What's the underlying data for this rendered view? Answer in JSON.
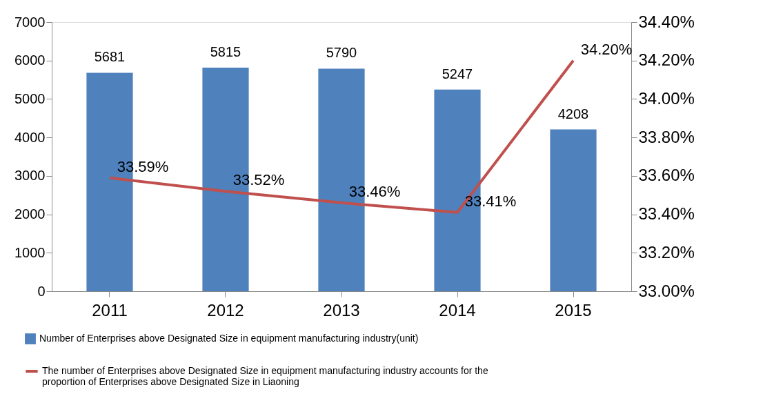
{
  "chart_data": {
    "type": "bar",
    "categories": [
      "2011",
      "2012",
      "2013",
      "2014",
      "2015"
    ],
    "series": [
      {
        "name": "Number of Enterprises above Designated Size in equipment manufacturing industry(unit)",
        "color": "#4f81bd",
        "values": [
          5681,
          5815,
          5790,
          5247,
          4208
        ],
        "value_labels": [
          "5681",
          "5815",
          "5790",
          "5247",
          "4208"
        ]
      },
      {
        "name": "The number of Enterprises above Designated Size in equipment manufacturing industry accounts for the proportion of Enterprises above Designated Size in Liaoning",
        "type": "line",
        "axis": "y2",
        "color": "#c0504d",
        "values": [
          33.59,
          33.52,
          33.46,
          33.41,
          34.2
        ],
        "value_labels": [
          "33.59%",
          "33.52%",
          "33.46%",
          "33.41%",
          "34.20%"
        ]
      }
    ],
    "ylim": [
      0,
      7000
    ],
    "yticks": [
      0,
      1000,
      2000,
      3000,
      4000,
      5000,
      6000,
      7000
    ],
    "y2lim": [
      33.0,
      34.4
    ],
    "y2ticks": [
      {
        "value": 33.0,
        "label": "33.00%"
      },
      {
        "value": 33.2,
        "label": "33.20%"
      },
      {
        "value": 33.4,
        "label": "33.40%"
      },
      {
        "value": 33.6,
        "label": "33.60%"
      },
      {
        "value": 33.8,
        "label": "33.80%"
      },
      {
        "value": 34.0,
        "label": "34.00%"
      },
      {
        "value": 34.2,
        "label": "34.20%"
      },
      {
        "value": 34.4,
        "label": "34.40%"
      }
    ],
    "grid": false,
    "legend": "bottom",
    "marker": "none",
    "line_style": "solid"
  }
}
